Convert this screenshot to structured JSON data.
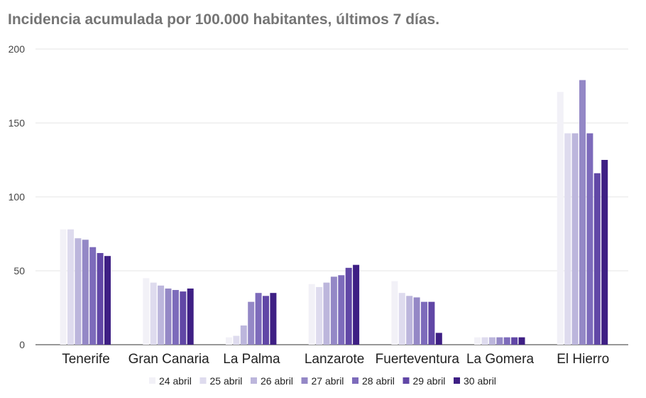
{
  "chart_data": {
    "type": "bar",
    "title": "Incidencia acumulada por 100.000 habitantes, últimos 7 días.",
    "categories": [
      "Tenerife",
      "Gran Canaria",
      "La Palma",
      "Lanzarote",
      "Fuerteventura",
      "La Gomera",
      "El Hierro"
    ],
    "yticks": [
      "0",
      "50",
      "100",
      "150",
      "200"
    ],
    "ylim": [
      0,
      200
    ],
    "grid": true,
    "legend_position": "bottom",
    "series": [
      {
        "name": "24 abril",
        "color": "#f2f1f7",
        "values": [
          78,
          45,
          5,
          41,
          43,
          5,
          171
        ]
      },
      {
        "name": "25 abril",
        "color": "#dedbee",
        "values": [
          78,
          42,
          6,
          39,
          35,
          5,
          143
        ]
      },
      {
        "name": "26 abril",
        "color": "#bcb6dc",
        "values": [
          72,
          40,
          13,
          42,
          33,
          5,
          143
        ]
      },
      {
        "name": "27 abril",
        "color": "#9488c6",
        "values": [
          71,
          38,
          29,
          46,
          32,
          5,
          179
        ]
      },
      {
        "name": "28 abril",
        "color": "#7d6bbb",
        "values": [
          66,
          37,
          35,
          47,
          29,
          5,
          143
        ]
      },
      {
        "name": "29 abril",
        "color": "#6147a6",
        "values": [
          62,
          36,
          33,
          52,
          29,
          5,
          116
        ]
      },
      {
        "name": "30 abril",
        "color": "#3e1f84",
        "values": [
          60,
          38,
          35,
          54,
          8,
          5,
          125
        ]
      }
    ]
  }
}
